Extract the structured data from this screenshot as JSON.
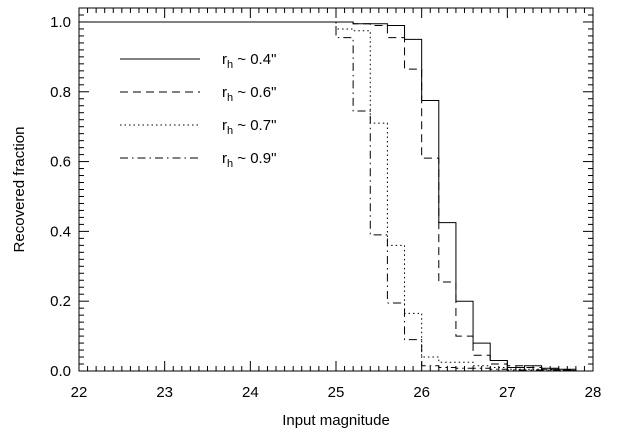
{
  "chart_data": {
    "type": "line",
    "title": "",
    "xlabel": "Input magnitude",
    "ylabel": "Recovered fraction",
    "xlim": [
      22,
      28
    ],
    "ylim": [
      0,
      1.04
    ],
    "x_ticks": [
      "22",
      "23",
      "24",
      "25",
      "26",
      "27",
      "28"
    ],
    "y_ticks": [
      "0.0",
      "0.2",
      "0.4",
      "0.6",
      "0.8",
      "1.0"
    ],
    "grid": false,
    "legend_position": "upper-left",
    "step_width": 0.2,
    "series": [
      {
        "name_base": "r",
        "name_sub": "h",
        "name_rest": " ~ 0.4\"",
        "dash": "solid",
        "x": [
          22.0,
          22.2,
          22.4,
          22.6,
          22.8,
          23.0,
          23.2,
          23.4,
          23.6,
          23.8,
          24.0,
          24.2,
          24.4,
          24.6,
          24.8,
          25.0,
          25.2,
          25.4,
          25.6,
          25.8,
          26.0,
          26.2,
          26.4,
          26.6,
          26.8,
          27.0,
          27.2,
          27.4,
          27.6,
          27.8
        ],
        "y": [
          1.0,
          1.0,
          1.0,
          1.0,
          1.0,
          1.0,
          1.0,
          1.0,
          1.0,
          1.0,
          1.0,
          1.0,
          1.0,
          1.0,
          1.0,
          1.0,
          0.995,
          0.995,
          0.99,
          0.95,
          0.775,
          0.425,
          0.2,
          0.08,
          0.03,
          0.01,
          0.015,
          0.008,
          0.005,
          0.0
        ]
      },
      {
        "name_base": "r",
        "name_sub": "h",
        "name_rest": " ~ 0.6\"",
        "dash": "dashed",
        "x": [
          22.0,
          22.2,
          22.4,
          22.6,
          22.8,
          23.0,
          23.2,
          23.4,
          23.6,
          23.8,
          24.0,
          24.2,
          24.4,
          24.6,
          24.8,
          25.0,
          25.2,
          25.4,
          25.6,
          25.8,
          26.0,
          26.2,
          26.4,
          26.6,
          26.8,
          27.0,
          27.2,
          27.4,
          27.6,
          27.8
        ],
        "y": [
          1.0,
          1.0,
          1.0,
          1.0,
          1.0,
          1.0,
          1.0,
          1.0,
          1.0,
          1.0,
          1.0,
          1.0,
          1.0,
          1.0,
          1.0,
          1.0,
          0.995,
          0.99,
          0.955,
          0.865,
          0.61,
          0.255,
          0.1,
          0.045,
          0.02,
          0.015,
          0.01,
          0.005,
          0.003,
          0.0
        ]
      },
      {
        "name_base": "r",
        "name_sub": "h",
        "name_rest": " ~ 0.7\"",
        "dash": "dotted",
        "x": [
          22.0,
          22.2,
          22.4,
          22.6,
          22.8,
          23.0,
          23.2,
          23.4,
          23.6,
          23.8,
          24.0,
          24.2,
          24.4,
          24.6,
          24.8,
          25.0,
          25.2,
          25.4,
          25.6,
          25.8,
          26.0,
          26.2,
          26.4,
          26.6,
          26.8,
          27.0,
          27.2,
          27.4,
          27.6,
          27.8
        ],
        "y": [
          1.0,
          1.0,
          1.0,
          1.0,
          1.0,
          1.0,
          1.0,
          1.0,
          1.0,
          1.0,
          1.0,
          1.0,
          1.0,
          1.0,
          1.0,
          0.98,
          0.975,
          0.71,
          0.36,
          0.165,
          0.04,
          0.025,
          0.025,
          0.015,
          0.01,
          0.005,
          0.005,
          0.004,
          0.002,
          0.0
        ]
      },
      {
        "name_base": "r",
        "name_sub": "h",
        "name_rest": " ~ 0.9\"",
        "dash": "dashdot",
        "x": [
          22.0,
          22.2,
          22.4,
          22.6,
          22.8,
          23.0,
          23.2,
          23.4,
          23.6,
          23.8,
          24.0,
          24.2,
          24.4,
          24.6,
          24.8,
          25.0,
          25.2,
          25.4,
          25.6,
          25.8,
          26.0,
          26.2,
          26.4,
          26.6,
          26.8,
          27.0,
          27.2,
          27.4,
          27.6,
          27.8
        ],
        "y": [
          1.0,
          1.0,
          1.0,
          1.0,
          1.0,
          1.0,
          1.0,
          1.0,
          1.0,
          1.0,
          1.0,
          1.0,
          1.0,
          1.0,
          1.0,
          0.955,
          0.745,
          0.39,
          0.195,
          0.09,
          0.015,
          0.01,
          0.008,
          0.008,
          0.005,
          0.003,
          0.003,
          0.002,
          0.001,
          0.0
        ]
      }
    ]
  }
}
